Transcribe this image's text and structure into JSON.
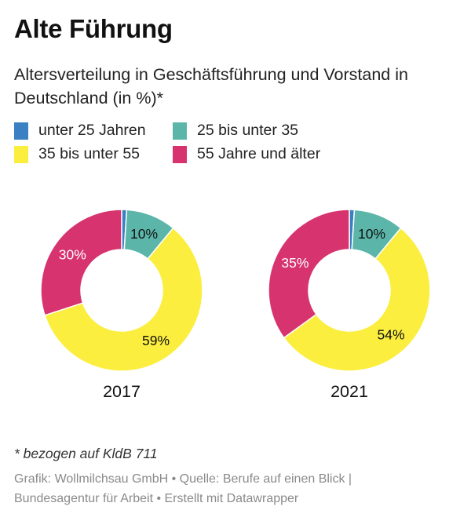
{
  "title": "Alte Führung",
  "subtitle": "Altersverteilung in Geschäftsführung und Vorstand in Deutschland (in %)*",
  "legend": [
    {
      "label": "unter 25 Jahren",
      "color": "#3a80c3"
    },
    {
      "label": "25 bis unter 35",
      "color": "#5bb6a9"
    },
    {
      "label": "35 bis unter 55",
      "color": "#fbee3f"
    },
    {
      "label": "55 Jahre und älter",
      "color": "#d6336f"
    }
  ],
  "chart_data": [
    {
      "type": "pie",
      "title": "2017",
      "categories": [
        "unter 25 Jahren",
        "25 bis unter 35",
        "35 bis unter 55",
        "55 Jahre und älter"
      ],
      "values": [
        1,
        10,
        59,
        30
      ],
      "labels": [
        "",
        "10%",
        "59%",
        "30%"
      ]
    },
    {
      "type": "pie",
      "title": "2021",
      "categories": [
        "unter 25 Jahren",
        "25 bis unter 35",
        "35 bis unter 55",
        "55 Jahre und älter"
      ],
      "values": [
        1,
        10,
        54,
        35
      ],
      "labels": [
        "",
        "10%",
        "54%",
        "35%"
      ]
    }
  ],
  "note": "* bezogen auf KldB 711",
  "source_line1": "Grafik: Wollmilchsau GmbH • Quelle: Berufe auf einen Blick |",
  "source_line2": "Bundesagentur für Arbeit • Erstellt mit Datawrapper"
}
